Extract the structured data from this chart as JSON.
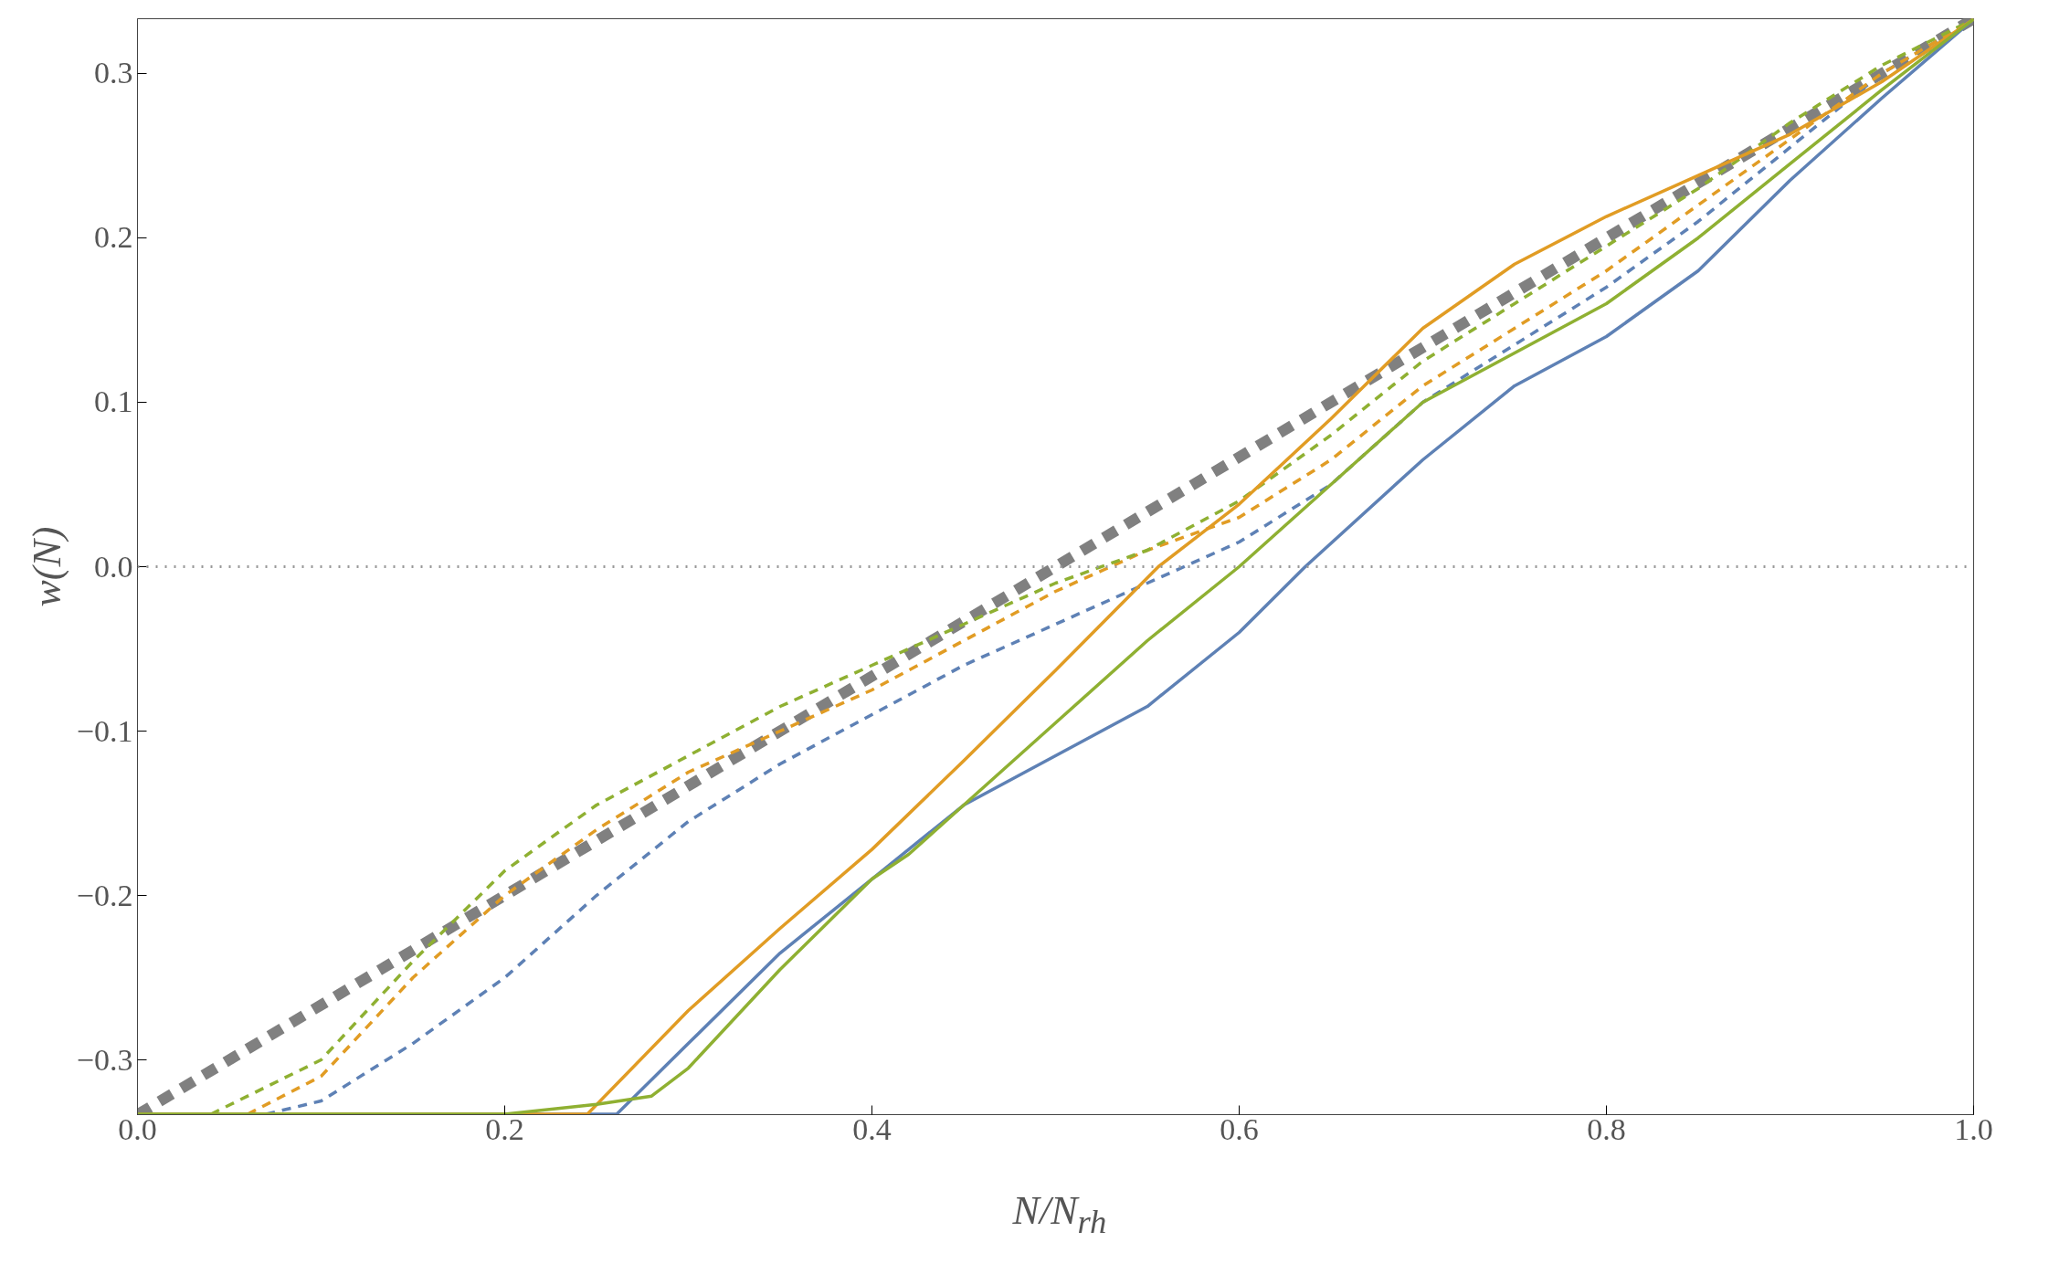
{
  "chart_data": {
    "type": "line",
    "xlabel": "N/N$_{rh}$",
    "ylabel": "w(N)",
    "xlim": [
      0,
      1
    ],
    "ylim": [
      -0.3333,
      0.3333
    ],
    "xticks": [
      {
        "value": 0,
        "label": "0.0"
      },
      0.2,
      0.4,
      0.6,
      0.8,
      {
        "value": 1,
        "label": "1.0"
      }
    ],
    "yticks": [
      {
        "value": -0.3,
        "label": "−0.3"
      },
      {
        "value": -0.2,
        "label": "−0.2"
      },
      {
        "value": -0.1,
        "label": "−0.1"
      },
      {
        "value": 0,
        "label": "0.0"
      },
      0.1,
      0.2,
      0.3
    ],
    "grid": false,
    "ref_lines": [
      {
        "axis": "y",
        "value": 0,
        "color": "#999999",
        "line_style": "dotted"
      }
    ],
    "series": [
      {
        "color": "#808080",
        "line_style": "dashed",
        "x": [
          0,
          0.5,
          1
        ],
        "values": [
          -0.3333,
          0,
          0.3333
        ]
      },
      {
        "color": "#5e81b5",
        "line_style": "dashed",
        "x": [
          0.07,
          0.1,
          0.15,
          0.2,
          0.25,
          0.3,
          0.35,
          0.4,
          0.45,
          0.5,
          0.55,
          0.6,
          0.65,
          0.7,
          0.75,
          0.8,
          0.85,
          0.9,
          0.95,
          1
        ],
        "values": [
          -0.333,
          -0.325,
          -0.29,
          -0.25,
          -0.2,
          -0.155,
          -0.12,
          -0.09,
          -0.06,
          -0.035,
          -0.01,
          0.015,
          0.05,
          0.1,
          0.135,
          0.17,
          0.21,
          0.255,
          0.3,
          0.333
        ]
      },
      {
        "color": "#e19c24",
        "line_style": "dashed",
        "x": [
          0.06,
          0.1,
          0.15,
          0.2,
          0.25,
          0.3,
          0.35,
          0.4,
          0.45,
          0.5,
          0.55,
          0.6,
          0.65,
          0.7,
          0.75,
          0.8,
          0.85,
          0.9,
          0.95,
          1
        ],
        "values": [
          -0.333,
          -0.31,
          -0.25,
          -0.2,
          -0.16,
          -0.125,
          -0.1,
          -0.075,
          -0.045,
          -0.015,
          0.01,
          0.03,
          0.065,
          0.11,
          0.145,
          0.18,
          0.22,
          0.26,
          0.3,
          0.333
        ]
      },
      {
        "color": "#8fb032",
        "line_style": "dashed",
        "x": [
          0.04,
          0.1,
          0.15,
          0.2,
          0.25,
          0.3,
          0.35,
          0.4,
          0.45,
          0.5,
          0.55,
          0.6,
          0.65,
          0.7,
          0.75,
          0.8,
          0.85,
          0.9,
          0.95,
          1
        ],
        "values": [
          -0.333,
          -0.3,
          -0.24,
          -0.185,
          -0.145,
          -0.115,
          -0.085,
          -0.06,
          -0.035,
          -0.01,
          0.01,
          0.04,
          0.08,
          0.125,
          0.16,
          0.195,
          0.23,
          0.27,
          0.305,
          0.333
        ]
      },
      {
        "color": "#5e81b5",
        "line_style": "solid",
        "x": [
          0,
          0.261,
          0.3,
          0.35,
          0.4,
          0.45,
          0.5,
          0.55,
          0.6,
          0.636,
          0.7,
          0.75,
          0.8,
          0.85,
          0.9,
          0.95,
          1
        ],
        "values": [
          -0.333,
          -0.333,
          -0.29,
          -0.235,
          -0.19,
          -0.145,
          -0.115,
          -0.085,
          -0.04,
          0,
          0.065,
          0.11,
          0.14,
          0.18,
          0.235,
          0.285,
          0.333
        ]
      },
      {
        "color": "#e19c24",
        "line_style": "solid",
        "x": [
          0,
          0.245,
          0.3,
          0.35,
          0.4,
          0.45,
          0.5,
          0.556,
          0.6,
          0.65,
          0.7,
          0.75,
          0.8,
          0.85,
          0.9,
          0.95,
          1
        ],
        "values": [
          -0.333,
          -0.333,
          -0.27,
          -0.22,
          -0.172,
          -0.118,
          -0.063,
          0,
          0.038,
          0.09,
          0.145,
          0.184,
          0.213,
          0.238,
          0.263,
          0.295,
          0.333
        ]
      },
      {
        "color": "#8fb032",
        "line_style": "solid",
        "x": [
          0,
          0.2,
          0.25,
          0.28,
          0.3,
          0.35,
          0.4,
          0.42,
          0.45,
          0.5,
          0.55,
          0.6,
          0.65,
          0.7,
          0.75,
          0.8,
          0.85,
          0.9,
          0.95,
          1
        ],
        "values": [
          -0.333,
          -0.333,
          -0.327,
          -0.322,
          -0.305,
          -0.245,
          -0.19,
          -0.175,
          -0.145,
          -0.095,
          -0.045,
          0,
          0.05,
          0.1,
          0.13,
          0.16,
          0.2,
          0.245,
          0.29,
          0.333
        ]
      }
    ]
  }
}
